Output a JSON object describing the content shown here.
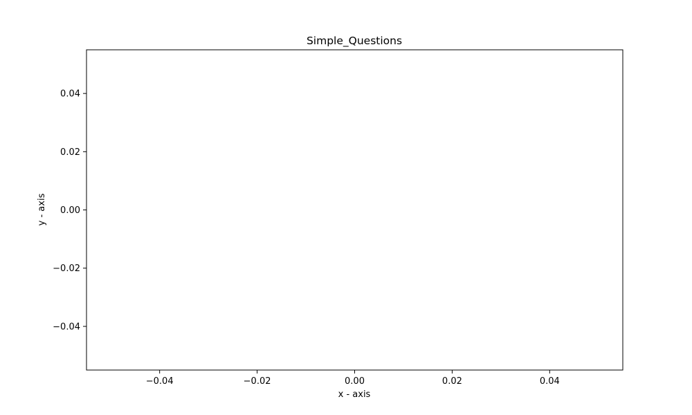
{
  "chart_data": {
    "type": "line",
    "title": "Simple_Questions",
    "xlabel": "x - axis",
    "ylabel": "y - axis",
    "xlim": [
      -0.055,
      0.055
    ],
    "ylim": [
      -0.055,
      0.055
    ],
    "grid": false,
    "x_ticks": [
      -0.04,
      -0.02,
      0.0,
      0.02,
      0.04
    ],
    "x_tick_labels": [
      "−0.04",
      "−0.02",
      "0.00",
      "0.02",
      "0.04"
    ],
    "y_ticks": [
      -0.04,
      -0.02,
      0.0,
      0.02,
      0.04
    ],
    "y_tick_labels": [
      "−0.04",
      "−0.02",
      "0.00",
      "0.02",
      "0.04"
    ],
    "series": []
  }
}
